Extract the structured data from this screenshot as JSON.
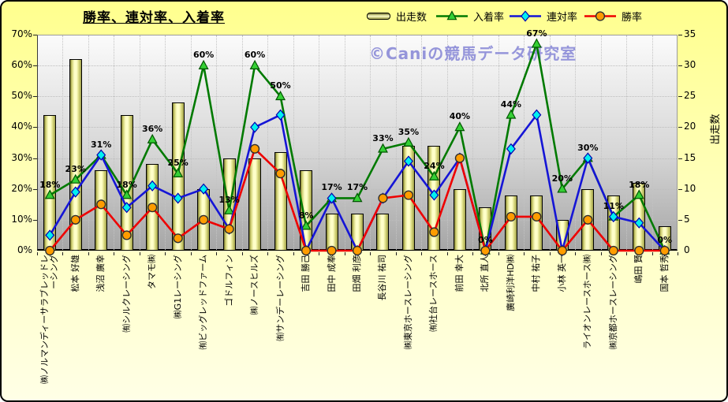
{
  "title": "勝率、連対率、入着率",
  "watermark": "©Caniの競馬データ研究室",
  "legend": [
    {
      "label": "出走数",
      "type": "bar",
      "marker": "bar-swatch"
    },
    {
      "label": "入着率",
      "type": "line",
      "marker": "triangle"
    },
    {
      "label": "連対率",
      "type": "line",
      "marker": "diamond"
    },
    {
      "label": "勝率",
      "type": "line",
      "marker": "circle"
    }
  ],
  "colors": {
    "bar_fill_light": "#ffffc9",
    "bar_fill_dark": "#75752e",
    "green_line": "#007a00",
    "green_marker_fill": "#35d035",
    "green_marker_edge": "#005500",
    "blue_line": "#1515d6",
    "blue_marker_fill": "#00f0f0",
    "blue_marker_edge": "#0000b0",
    "red_line": "#ee0000",
    "red_marker_fill": "#ff9c00",
    "red_marker_edge": "#2e2e2e",
    "watermark": "#9595da",
    "background_top": "#ffff8e",
    "background_bottom": "#ffffe6"
  },
  "chart_data": {
    "type": "combo-bar-line",
    "title": "勝率、連対率、入着率",
    "legend_position": "top",
    "grid": true,
    "categories": [
      "㈱ノルマンディーサラブレッドレーシング",
      "松本 好雄",
      "浅沼 廣幸",
      "㈲シルクレーシング",
      "タマモ㈱",
      "㈱G1レーシング",
      "㈲ビッグレッドファーム",
      "ゴドルフィン",
      "㈱ノースヒルズ",
      "㈲サンデーレーシング",
      "吉田 勝己",
      "田中 成奉",
      "田畑 利彦",
      "長谷川 祐司",
      "㈱東京ホースレーシング",
      "㈲社台レースホース",
      "前田 幸大",
      "北所 直人",
      "廣崎利洋HD㈱",
      "中村 祐子",
      "小林 英一",
      "ライオンレースホース㈱",
      "㈱京都ホースレーシング",
      "嶋田 賢",
      "国本 哲秀"
    ],
    "series": [
      {
        "name": "出走数",
        "type": "bar",
        "axis": "right",
        "values": [
          22,
          31,
          13,
          22,
          14,
          24,
          10,
          15,
          15,
          16,
          13,
          6,
          6,
          6,
          17,
          17,
          10,
          7,
          9,
          9,
          5,
          10,
          9,
          11,
          4
        ]
      },
      {
        "name": "入着率",
        "type": "line",
        "axis": "left",
        "unit": "%",
        "values": [
          18,
          23,
          31,
          18,
          36,
          25,
          60,
          13,
          60,
          50,
          8,
          17,
          17,
          33,
          35,
          24,
          40,
          0,
          44,
          67,
          20,
          30,
          11,
          18,
          0
        ],
        "data_labels": [
          "18%",
          "23%",
          "31%",
          "18%",
          "36%",
          "25%",
          "60%",
          "13%",
          "60%",
          "50%",
          "8%",
          "17%",
          "17%",
          "33%",
          "35%",
          "24%",
          "40%",
          "0%",
          "44%",
          "67%",
          "20%",
          "30%",
          "11%",
          "18%",
          "0%"
        ]
      },
      {
        "name": "連対率",
        "type": "line",
        "axis": "left",
        "unit": "%",
        "values": [
          5,
          19,
          31,
          14,
          21,
          17,
          20,
          7,
          40,
          44,
          0,
          17,
          0,
          17,
          29,
          18,
          30,
          0,
          33,
          44,
          0,
          30,
          11,
          9,
          0
        ]
      },
      {
        "name": "勝率",
        "type": "line",
        "axis": "left",
        "unit": "%",
        "values": [
          0,
          10,
          15,
          5,
          14,
          4,
          10,
          7,
          33,
          25,
          0,
          0,
          0,
          17,
          18,
          6,
          30,
          0,
          11,
          11,
          0,
          10,
          0,
          0,
          0
        ]
      }
    ],
    "left_axis": {
      "min": 0,
      "max": 70,
      "step": 10,
      "tick_labels": [
        "0%",
        "10%",
        "20%",
        "30%",
        "40%",
        "50%",
        "60%",
        "70%"
      ]
    },
    "right_axis": {
      "title": "出走数",
      "min": 0,
      "max": 35,
      "step": 5,
      "tick_labels": [
        "0",
        "5",
        "10",
        "15",
        "20",
        "25",
        "30",
        "35"
      ]
    }
  }
}
